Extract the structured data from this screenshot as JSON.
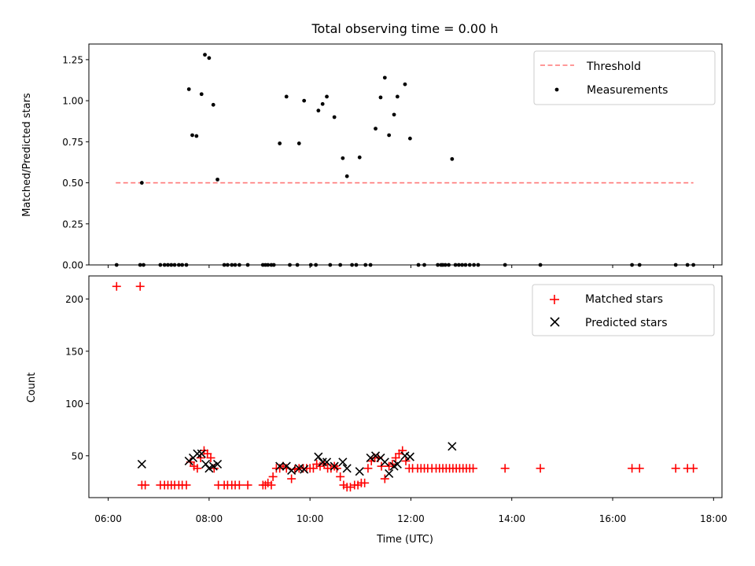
{
  "chart_data": [
    {
      "type": "scatter",
      "title": "Total observing time = 0.00 h",
      "xlabel": "",
      "ylabel": "Matched/Predicted stars",
      "xlim": [
        "05:37",
        "18:10"
      ],
      "ylim": [
        0,
        1.3452
      ],
      "yticks": [
        0,
        0.25,
        0.5,
        0.75,
        1.0,
        1.25
      ],
      "ytick_labels": [
        "0.00",
        "0.25",
        "0.50",
        "0.75",
        "1.00",
        "1.25"
      ],
      "legend_position": "upper right",
      "series": [
        {
          "name": "Threshold",
          "kind": "dashed-line",
          "color": "#ff7777",
          "points": [
            {
              "x": "06:09",
              "y": 0.5
            },
            {
              "x": "17:36",
              "y": 0.5
            }
          ]
        },
        {
          "name": "Measurements",
          "kind": "dot",
          "color": "#000000",
          "points": [
            {
              "x": "06:10",
              "y": 0
            },
            {
              "x": "06:38",
              "y": 0
            },
            {
              "x": "06:42",
              "y": 0
            },
            {
              "x": "06:40",
              "y": 0.5
            },
            {
              "x": "07:02",
              "y": 0
            },
            {
              "x": "07:07",
              "y": 0
            },
            {
              "x": "07:11",
              "y": 0
            },
            {
              "x": "07:15",
              "y": 0
            },
            {
              "x": "07:19",
              "y": 0
            },
            {
              "x": "07:24",
              "y": 0
            },
            {
              "x": "07:28",
              "y": 0
            },
            {
              "x": "07:33",
              "y": 0
            },
            {
              "x": "07:36",
              "y": 1.07
            },
            {
              "x": "07:40",
              "y": 0.79
            },
            {
              "x": "07:45",
              "y": 0.785
            },
            {
              "x": "07:51",
              "y": 1.04
            },
            {
              "x": "07:55",
              "y": 1.28
            },
            {
              "x": "08:00",
              "y": 1.26
            },
            {
              "x": "08:05",
              "y": 0.975
            },
            {
              "x": "08:10",
              "y": 0.52
            },
            {
              "x": "08:18",
              "y": 0
            },
            {
              "x": "08:22",
              "y": 0
            },
            {
              "x": "08:27",
              "y": 0
            },
            {
              "x": "08:31",
              "y": 0
            },
            {
              "x": "08:36",
              "y": 0
            },
            {
              "x": "08:46",
              "y": 0
            },
            {
              "x": "09:04",
              "y": 0
            },
            {
              "x": "09:07",
              "y": 0
            },
            {
              "x": "09:10",
              "y": 0
            },
            {
              "x": "09:14",
              "y": 0
            },
            {
              "x": "09:17",
              "y": 0
            },
            {
              "x": "09:24",
              "y": 0.74
            },
            {
              "x": "09:32",
              "y": 1.025
            },
            {
              "x": "09:36",
              "y": 0
            },
            {
              "x": "09:45",
              "y": 0
            },
            {
              "x": "09:47",
              "y": 0.74
            },
            {
              "x": "09:53",
              "y": 1.0
            },
            {
              "x": "10:01",
              "y": 0
            },
            {
              "x": "10:07",
              "y": 0
            },
            {
              "x": "10:10",
              "y": 0.94
            },
            {
              "x": "10:15",
              "y": 0.98
            },
            {
              "x": "10:20",
              "y": 1.025
            },
            {
              "x": "10:29",
              "y": 0.9
            },
            {
              "x": "10:24",
              "y": 0
            },
            {
              "x": "10:36",
              "y": 0
            },
            {
              "x": "10:39",
              "y": 0.65
            },
            {
              "x": "10:44",
              "y": 0.54
            },
            {
              "x": "10:50",
              "y": 0
            },
            {
              "x": "10:55",
              "y": 0
            },
            {
              "x": "10:59",
              "y": 0.655
            },
            {
              "x": "11:06",
              "y": 0
            },
            {
              "x": "11:12",
              "y": 0
            },
            {
              "x": "11:18",
              "y": 0.83
            },
            {
              "x": "11:24",
              "y": 1.02
            },
            {
              "x": "11:29",
              "y": 1.14
            },
            {
              "x": "11:34",
              "y": 0.79
            },
            {
              "x": "11:40",
              "y": 0.915
            },
            {
              "x": "11:44",
              "y": 1.025
            },
            {
              "x": "11:53",
              "y": 1.1
            },
            {
              "x": "11:59",
              "y": 0.77
            },
            {
              "x": "12:09",
              "y": 0
            },
            {
              "x": "12:16",
              "y": 0
            },
            {
              "x": "12:32",
              "y": 0
            },
            {
              "x": "12:36",
              "y": 0
            },
            {
              "x": "12:38",
              "y": 0
            },
            {
              "x": "12:41",
              "y": 0
            },
            {
              "x": "12:45",
              "y": 0
            },
            {
              "x": "12:49",
              "y": 0.645
            },
            {
              "x": "12:53",
              "y": 0
            },
            {
              "x": "12:57",
              "y": 0
            },
            {
              "x": "13:01",
              "y": 0
            },
            {
              "x": "13:05",
              "y": 0
            },
            {
              "x": "13:10",
              "y": 0
            },
            {
              "x": "13:15",
              "y": 0
            },
            {
              "x": "13:20",
              "y": 0
            },
            {
              "x": "13:52",
              "y": 0
            },
            {
              "x": "14:34",
              "y": 0
            },
            {
              "x": "16:23",
              "y": 0
            },
            {
              "x": "16:32",
              "y": 0
            },
            {
              "x": "17:15",
              "y": 0
            },
            {
              "x": "17:29",
              "y": 0
            },
            {
              "x": "17:36",
              "y": 0
            }
          ]
        }
      ]
    },
    {
      "type": "scatter",
      "title": "",
      "xlabel": "Time (UTC)",
      "ylabel": "Count",
      "xlim": [
        "05:37",
        "18:10"
      ],
      "ylim": [
        10,
        222
      ],
      "yticks": [
        50,
        100,
        150,
        200
      ],
      "ytick_labels": [
        "50",
        "100",
        "150",
        "200"
      ],
      "xticks": [
        "06:00",
        "08:00",
        "10:00",
        "12:00",
        "14:00",
        "16:00",
        "18:00"
      ],
      "legend_position": "upper right",
      "series": [
        {
          "name": "Matched stars",
          "kind": "plus",
          "color": "#ff0000",
          "points": [
            {
              "x": "06:10",
              "y": 212
            },
            {
              "x": "06:38",
              "y": 212
            },
            {
              "x": "06:40",
              "y": 22
            },
            {
              "x": "06:44",
              "y": 22
            },
            {
              "x": "07:02",
              "y": 22
            },
            {
              "x": "07:07",
              "y": 22
            },
            {
              "x": "07:11",
              "y": 22
            },
            {
              "x": "07:15",
              "y": 22
            },
            {
              "x": "07:19",
              "y": 22
            },
            {
              "x": "07:24",
              "y": 22
            },
            {
              "x": "07:28",
              "y": 22
            },
            {
              "x": "07:33",
              "y": 22
            },
            {
              "x": "07:38",
              "y": 44
            },
            {
              "x": "07:42",
              "y": 40
            },
            {
              "x": "07:46",
              "y": 38
            },
            {
              "x": "07:50",
              "y": 48
            },
            {
              "x": "07:54",
              "y": 55
            },
            {
              "x": "07:58",
              "y": 52
            },
            {
              "x": "08:02",
              "y": 48
            },
            {
              "x": "08:06",
              "y": 38
            },
            {
              "x": "08:11",
              "y": 22
            },
            {
              "x": "08:18",
              "y": 22
            },
            {
              "x": "08:22",
              "y": 22
            },
            {
              "x": "08:27",
              "y": 22
            },
            {
              "x": "08:31",
              "y": 22
            },
            {
              "x": "08:36",
              "y": 22
            },
            {
              "x": "08:46",
              "y": 22
            },
            {
              "x": "09:04",
              "y": 22
            },
            {
              "x": "09:07",
              "y": 22
            },
            {
              "x": "09:10",
              "y": 24
            },
            {
              "x": "09:14",
              "y": 22
            },
            {
              "x": "09:16",
              "y": 30
            },
            {
              "x": "09:20",
              "y": 38
            },
            {
              "x": "09:24",
              "y": 38
            },
            {
              "x": "09:28",
              "y": 40
            },
            {
              "x": "09:32",
              "y": 38
            },
            {
              "x": "09:38",
              "y": 28
            },
            {
              "x": "09:42",
              "y": 37
            },
            {
              "x": "09:47",
              "y": 38
            },
            {
              "x": "09:52",
              "y": 38
            },
            {
              "x": "09:56",
              "y": 38
            },
            {
              "x": "10:00",
              "y": 38
            },
            {
              "x": "10:04",
              "y": 38
            },
            {
              "x": "10:08",
              "y": 42
            },
            {
              "x": "10:12",
              "y": 40
            },
            {
              "x": "10:17",
              "y": 42
            },
            {
              "x": "10:21",
              "y": 38
            },
            {
              "x": "10:25",
              "y": 38
            },
            {
              "x": "10:29",
              "y": 40
            },
            {
              "x": "10:32",
              "y": 38
            },
            {
              "x": "10:36",
              "y": 30
            },
            {
              "x": "10:40",
              "y": 22
            },
            {
              "x": "10:44",
              "y": 20
            },
            {
              "x": "10:48",
              "y": 20
            },
            {
              "x": "10:53",
              "y": 22
            },
            {
              "x": "10:57",
              "y": 22
            },
            {
              "x": "11:01",
              "y": 24
            },
            {
              "x": "11:05",
              "y": 24
            },
            {
              "x": "11:09",
              "y": 38
            },
            {
              "x": "11:13",
              "y": 45
            },
            {
              "x": "11:17",
              "y": 48
            },
            {
              "x": "11:21",
              "y": 48
            },
            {
              "x": "11:25",
              "y": 40
            },
            {
              "x": "11:29",
              "y": 28
            },
            {
              "x": "11:34",
              "y": 40
            },
            {
              "x": "11:38",
              "y": 42
            },
            {
              "x": "11:42",
              "y": 48
            },
            {
              "x": "11:46",
              "y": 52
            },
            {
              "x": "11:50",
              "y": 55
            },
            {
              "x": "11:54",
              "y": 45
            },
            {
              "x": "11:58",
              "y": 38
            },
            {
              "x": "12:02",
              "y": 38
            },
            {
              "x": "12:08",
              "y": 38
            },
            {
              "x": "12:12",
              "y": 38
            },
            {
              "x": "12:16",
              "y": 38
            },
            {
              "x": "12:20",
              "y": 38
            },
            {
              "x": "12:25",
              "y": 38
            },
            {
              "x": "12:30",
              "y": 38
            },
            {
              "x": "12:34",
              "y": 38
            },
            {
              "x": "12:38",
              "y": 38
            },
            {
              "x": "12:42",
              "y": 38
            },
            {
              "x": "12:46",
              "y": 38
            },
            {
              "x": "12:50",
              "y": 38
            },
            {
              "x": "12:54",
              "y": 38
            },
            {
              "x": "12:58",
              "y": 38
            },
            {
              "x": "13:02",
              "y": 38
            },
            {
              "x": "13:06",
              "y": 38
            },
            {
              "x": "13:10",
              "y": 38
            },
            {
              "x": "13:14",
              "y": 38
            },
            {
              "x": "13:52",
              "y": 38
            },
            {
              "x": "14:34",
              "y": 38
            },
            {
              "x": "16:23",
              "y": 38
            },
            {
              "x": "16:32",
              "y": 38
            },
            {
              "x": "17:15",
              "y": 38
            },
            {
              "x": "17:29",
              "y": 38
            },
            {
              "x": "17:36",
              "y": 38
            }
          ]
        },
        {
          "name": "Predicted stars",
          "kind": "x",
          "color": "#000000",
          "points": [
            {
              "x": "06:40",
              "y": 42
            },
            {
              "x": "07:36",
              "y": 45
            },
            {
              "x": "07:41",
              "y": 48
            },
            {
              "x": "07:46",
              "y": 52
            },
            {
              "x": "07:51",
              "y": 52
            },
            {
              "x": "07:56",
              "y": 42
            },
            {
              "x": "08:00",
              "y": 38
            },
            {
              "x": "08:05",
              "y": 40
            },
            {
              "x": "08:10",
              "y": 42
            },
            {
              "x": "09:24",
              "y": 40
            },
            {
              "x": "09:32",
              "y": 40
            },
            {
              "x": "09:38",
              "y": 36
            },
            {
              "x": "09:47",
              "y": 38
            },
            {
              "x": "09:53",
              "y": 37
            },
            {
              "x": "10:10",
              "y": 49
            },
            {
              "x": "10:15",
              "y": 44
            },
            {
              "x": "10:20",
              "y": 44
            },
            {
              "x": "10:29",
              "y": 40
            },
            {
              "x": "10:39",
              "y": 44
            },
            {
              "x": "10:44",
              "y": 38
            },
            {
              "x": "10:59",
              "y": 35
            },
            {
              "x": "11:12",
              "y": 48
            },
            {
              "x": "11:18",
              "y": 50
            },
            {
              "x": "11:24",
              "y": 48
            },
            {
              "x": "11:29",
              "y": 44
            },
            {
              "x": "11:34",
              "y": 33
            },
            {
              "x": "11:40",
              "y": 40
            },
            {
              "x": "11:44",
              "y": 42
            },
            {
              "x": "11:53",
              "y": 50
            },
            {
              "x": "11:59",
              "y": 49
            },
            {
              "x": "12:49",
              "y": 59
            }
          ]
        }
      ]
    }
  ],
  "legend": {
    "top": [
      {
        "label": "Threshold"
      },
      {
        "label": "Measurements"
      }
    ],
    "bottom": [
      {
        "label": "Matched stars"
      },
      {
        "label": "Predicted stars"
      }
    ]
  }
}
